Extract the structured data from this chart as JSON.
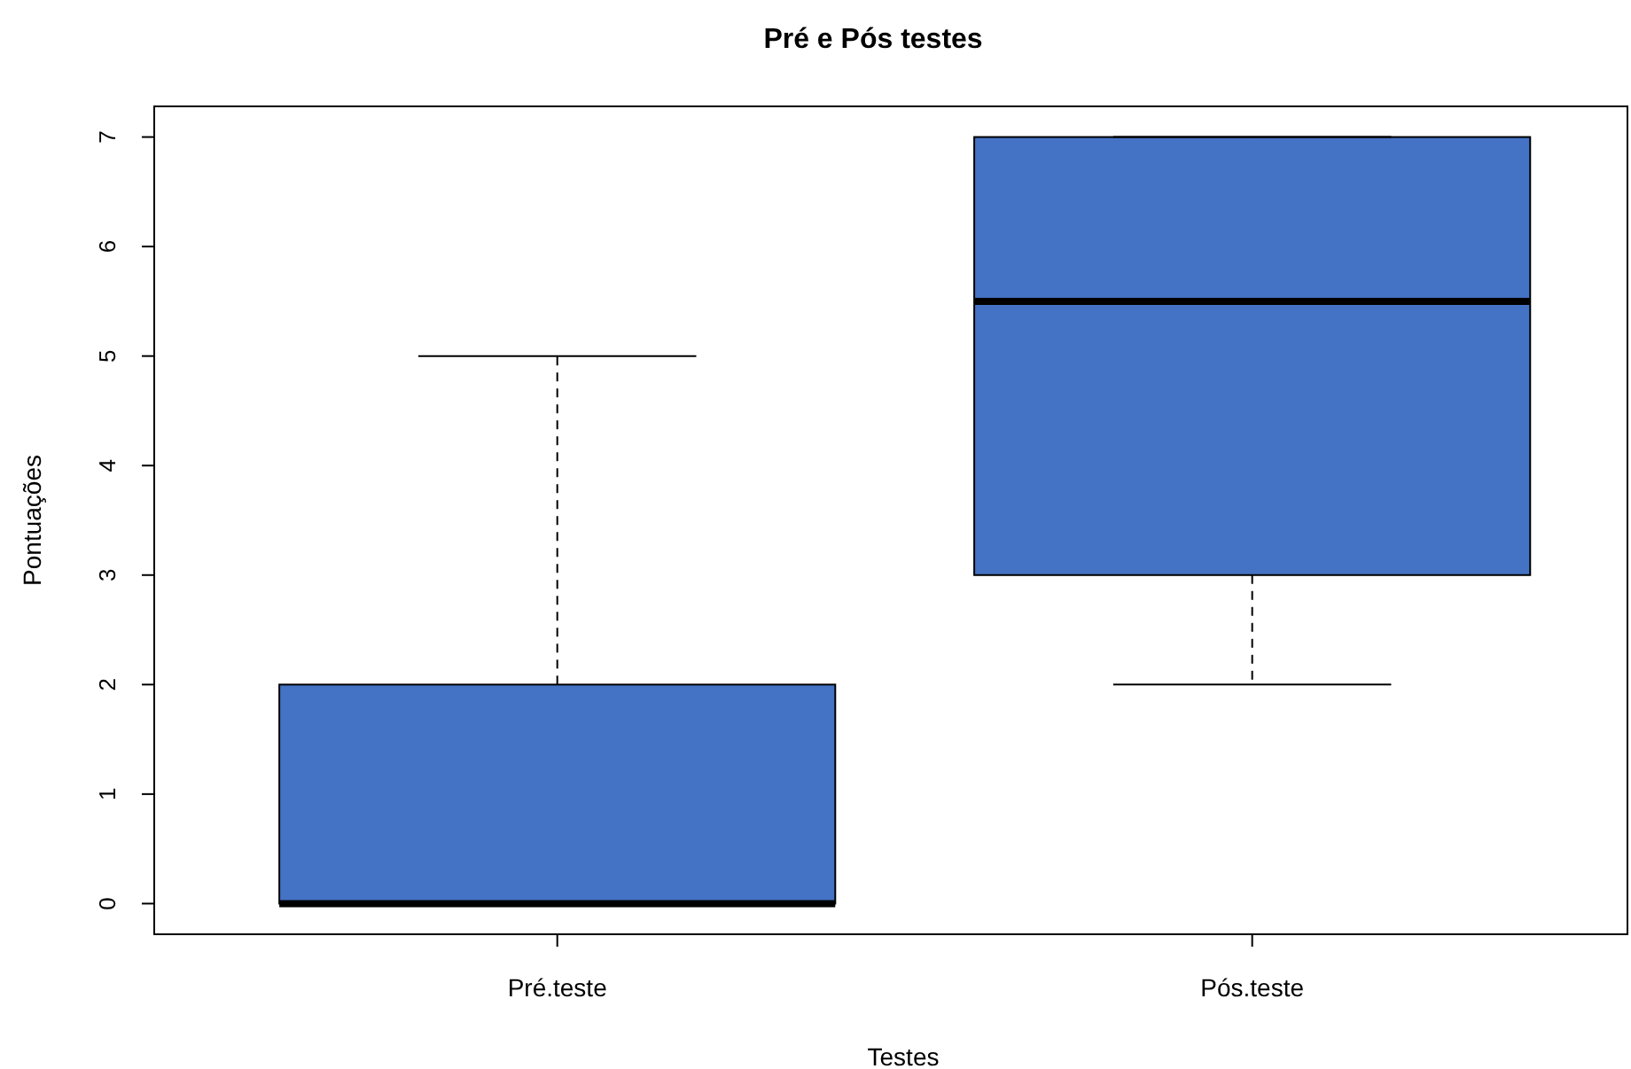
{
  "chart_data": {
    "type": "box",
    "title": "Pré e Pós testes",
    "xlabel": "Testes",
    "ylabel": "Pontuações",
    "categories": [
      "Pré.teste",
      "Pós.teste"
    ],
    "color": "#4472c4",
    "boxes": [
      {
        "low": 0,
        "q1": 0,
        "median": 0,
        "q3": 2,
        "high": 5
      },
      {
        "low": 2,
        "q1": 3,
        "median": 5.5,
        "q3": 7,
        "high": 7
      }
    ],
    "ylim": [
      -0.28,
      7.28
    ],
    "yticks": [
      0,
      1,
      2,
      3,
      4,
      5,
      6,
      7
    ],
    "grid": false
  }
}
